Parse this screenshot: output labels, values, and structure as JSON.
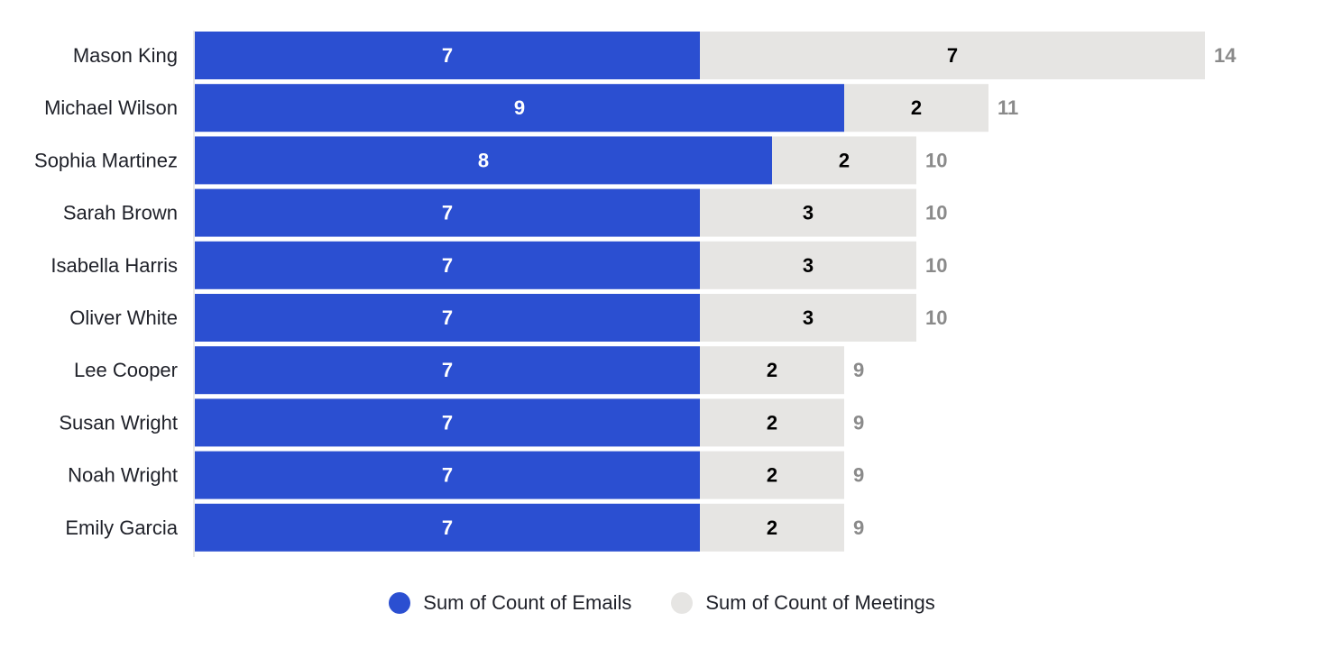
{
  "chart_data": {
    "type": "bar",
    "orientation": "horizontal",
    "stacked": true,
    "categories": [
      "Mason King",
      "Michael Wilson",
      "Sophia Martinez",
      "Sarah Brown",
      "Isabella Harris",
      "Oliver White",
      "Lee Cooper",
      "Susan Wright",
      "Noah Wright",
      "Emily Garcia"
    ],
    "series": [
      {
        "name": "Sum of Count of Emails",
        "color": "#2b4fd1",
        "values": [
          7,
          9,
          8,
          7,
          7,
          7,
          7,
          7,
          7,
          7
        ]
      },
      {
        "name": "Sum of Count of Meetings",
        "color": "#e6e5e3",
        "values": [
          7,
          2,
          2,
          3,
          3,
          3,
          2,
          2,
          2,
          2
        ]
      }
    ],
    "totals": [
      14,
      11,
      10,
      10,
      10,
      10,
      9,
      9,
      9,
      9
    ],
    "xlim": [
      0,
      14
    ],
    "grid": false,
    "legend_position": "bottom"
  }
}
